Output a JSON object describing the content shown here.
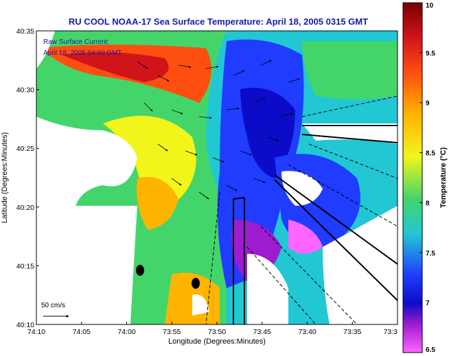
{
  "chart_data": {
    "type": "heatmap",
    "title": "RU COOL  NOAA-17  Sea Surface Temperature:  April 18, 2005 0315 GMT",
    "xlabel": "Longitude (Degrees:Minutes)",
    "ylabel": "Latitude (Degrees:Minutes)",
    "x_ticks": [
      "74:10",
      "74:05",
      "74:00",
      "73:55",
      "73:50",
      "73:45",
      "73:40",
      "73:35",
      "73:3"
    ],
    "y_ticks": [
      "40:35",
      "40:30",
      "40:25",
      "40:20",
      "40:15",
      "40:10"
    ],
    "xlim_minutes_west": [
      10,
      30
    ],
    "ylim_minutes_north": [
      10,
      35
    ],
    "annotation_lines": [
      "Raw Surface Current:",
      "April 18, 2005 04:00 GMT"
    ],
    "scale_vector_label": "50 cm/s",
    "colorbar": {
      "label": "Temperature (°C)",
      "ticks": [
        "10",
        "9.5",
        "9",
        "8.5",
        "8",
        "7.5",
        "7",
        "6.5"
      ],
      "range": [
        6.5,
        10
      ]
    }
  }
}
